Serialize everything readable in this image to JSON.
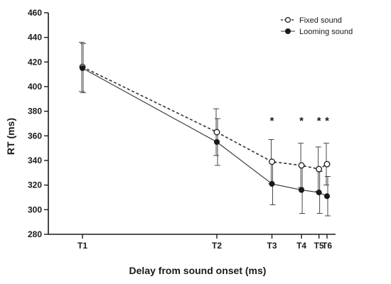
{
  "chart_data": {
    "type": "line",
    "xlabel": "Delay from sound onset (ms)",
    "ylabel": "RT (ms)",
    "ylim": [
      280,
      460
    ],
    "yticks": [
      280,
      300,
      320,
      340,
      360,
      380,
      400,
      420,
      440,
      460
    ],
    "categories": [
      "T1",
      "T2",
      "T3",
      "T4",
      "T5",
      "T6"
    ],
    "category_positions": [
      0,
      100,
      141,
      163,
      176,
      182
    ],
    "series": [
      {
        "name": "Fixed sound",
        "marker": "open-circle",
        "line_style": "dashed",
        "values": [
          416,
          363,
          339,
          336,
          333,
          337
        ],
        "errors": [
          20,
          19,
          18,
          18,
          18,
          17
        ]
      },
      {
        "name": "Looming sound",
        "marker": "filled-circle",
        "line_style": "solid",
        "values": [
          415,
          355,
          321,
          316,
          314,
          311
        ],
        "errors": [
          20,
          19,
          17,
          19,
          17,
          16
        ]
      }
    ],
    "significance_markers": [
      {
        "category": "T3",
        "label": "*"
      },
      {
        "category": "T4",
        "label": "*"
      },
      {
        "category": "T5",
        "label": "*"
      },
      {
        "category": "T6",
        "label": "*"
      }
    ],
    "legend_position": "top-right",
    "grid": false
  },
  "colors": {
    "line": "#333333",
    "marker_fill": "#1a1a1a",
    "open_marker_fill": "#ffffff"
  }
}
